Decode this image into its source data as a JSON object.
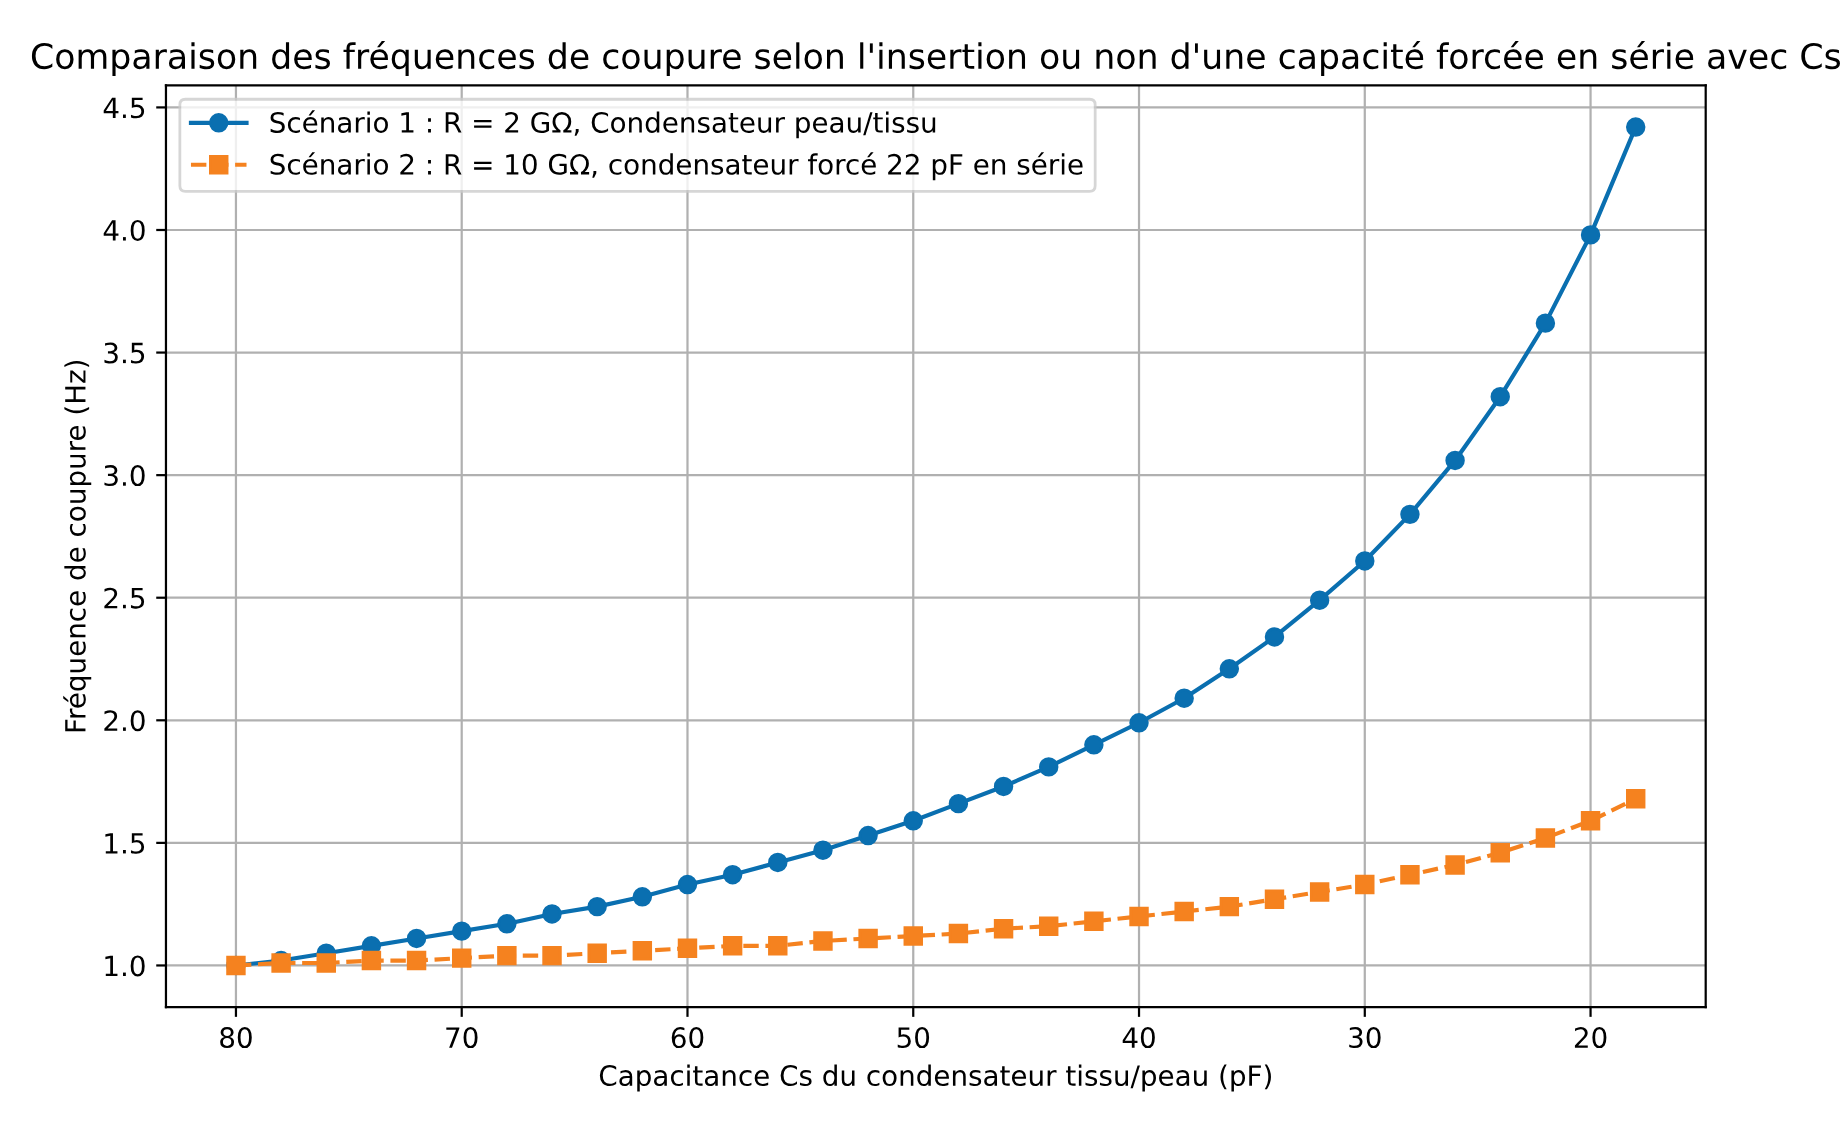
{
  "chart_data": {
    "type": "line",
    "title": "Comparaison des fréquences de coupure selon l'insertion ou non d'une capacité forcée en série avec Cs",
    "xlabel": "Capacitance Cs du condensateur tissu/peau (pF)",
    "ylabel": "Fréquence de coupure (Hz)",
    "x": [
      80,
      78,
      76,
      74,
      72,
      70,
      68,
      66,
      64,
      62,
      60,
      58,
      56,
      54,
      52,
      50,
      48,
      46,
      44,
      42,
      40,
      38,
      36,
      34,
      32,
      30,
      28,
      26,
      24,
      22,
      20,
      18
    ],
    "series": [
      {
        "name": "Scénario 1 : R = 2 GΩ, Condensateur peau/tissu",
        "color": "#0a6fb0",
        "marker": "circle",
        "line_style": "solid",
        "values": [
          1.0,
          1.02,
          1.05,
          1.08,
          1.11,
          1.14,
          1.17,
          1.21,
          1.24,
          1.28,
          1.33,
          1.37,
          1.42,
          1.47,
          1.53,
          1.59,
          1.66,
          1.73,
          1.81,
          1.9,
          1.99,
          2.09,
          2.21,
          2.34,
          2.49,
          2.65,
          2.84,
          3.06,
          3.32,
          3.62,
          3.98,
          4.42
        ]
      },
      {
        "name": "Scénario 2 : R = 10 GΩ, condensateur forcé 22 pF en série",
        "color": "#f5821f",
        "marker": "square",
        "line_style": "dashed",
        "values": [
          1.0,
          1.01,
          1.01,
          1.02,
          1.02,
          1.03,
          1.04,
          1.04,
          1.05,
          1.06,
          1.07,
          1.08,
          1.08,
          1.1,
          1.11,
          1.12,
          1.13,
          1.15,
          1.16,
          1.18,
          1.2,
          1.22,
          1.24,
          1.27,
          1.3,
          1.33,
          1.37,
          1.41,
          1.46,
          1.52,
          1.59,
          1.68
        ]
      }
    ],
    "xlim": [
      83.1,
      14.9
    ],
    "ylim": [
      0.83,
      4.59
    ],
    "xticks": [
      80,
      70,
      60,
      50,
      40,
      30,
      20
    ],
    "yticks": [
      {
        "value": 1.0,
        "label": "1.0"
      },
      {
        "value": 1.5,
        "label": "1.5"
      },
      {
        "value": 2.0,
        "label": "2.0"
      },
      {
        "value": 2.5,
        "label": "2.5"
      },
      {
        "value": 3.0,
        "label": "3.0"
      },
      {
        "value": 3.5,
        "label": "3.5"
      },
      {
        "value": 4.0,
        "label": "4.0"
      },
      {
        "value": 4.5,
        "label": "4.5"
      }
    ],
    "grid": true,
    "legend": "top left"
  }
}
